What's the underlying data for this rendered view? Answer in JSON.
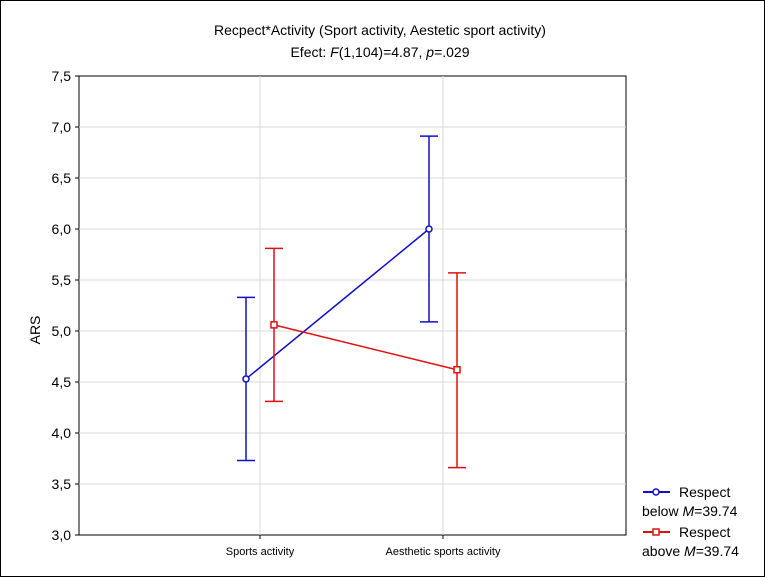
{
  "chart_data": {
    "type": "line",
    "title": "Recpect*Activity (Sport activity, Aestetic sport activity)",
    "subtitle_parts": [
      "Efect: ",
      "F",
      "(1,104)=4.87, ",
      "p",
      "=.029"
    ],
    "ylabel": "ARS",
    "xlabel": "",
    "ylim": [
      3.0,
      7.5
    ],
    "yticks": [
      "3,0",
      "3,5",
      "4,0",
      "4,5",
      "5,0",
      "5,5",
      "6,0",
      "6,5",
      "7,0",
      "7,5"
    ],
    "ytick_values": [
      3.0,
      3.5,
      4.0,
      4.5,
      5.0,
      5.5,
      6.0,
      6.5,
      7.0,
      7.5
    ],
    "categories": [
      "Sports activity",
      "Aesthetic sports activity"
    ],
    "grid": true,
    "legend_position": "bottom-right outside",
    "series": [
      {
        "name_parts": [
          "Respect",
          "below ",
          "M",
          "=39.74"
        ],
        "color": "#1010cc",
        "marker": "circle",
        "values": [
          4.53,
          6.0
        ],
        "lower": [
          3.73,
          5.09
        ],
        "upper": [
          5.33,
          6.91
        ]
      },
      {
        "name_parts": [
          "Respect",
          "above ",
          "M",
          "=39.74"
        ],
        "color": "#e01010",
        "marker": "square",
        "values": [
          5.06,
          4.62
        ],
        "lower": [
          4.31,
          3.66
        ],
        "upper": [
          5.81,
          5.57
        ]
      }
    ]
  }
}
